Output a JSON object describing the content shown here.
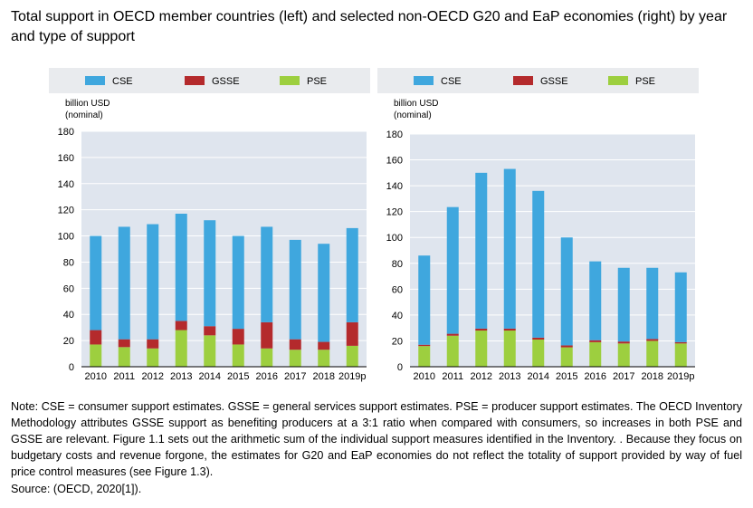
{
  "title": "Total support in OECD member countries (left) and selected non-OECD G20 and EaP economies (right) by year and type of support",
  "note": "Note: CSE = consumer support estimates. GSSE = general services support estimates. PSE = producer support estimates. The OECD Inventory Methodology attributes GSSE support as benefiting producers at a 3:1 ratio when compared with consumers, so increases in both PSE and GSSE are relevant. Figure 1.1 sets out the arithmetic sum of the individual support measures identified in the Inventory. . Because they focus on budgetary costs and revenue forgone, the estimates for G20 and EaP economies do not reflect the totality of support provided by way of fuel price control measures (see Figure 1.3).",
  "source": "Source: (OECD, 2020[1]).",
  "colors": {
    "PSE": "#9dcf3f",
    "GSSE": "#b42a2c",
    "CSE": "#3fa7de",
    "legend_bg": "#e9ebee",
    "plot_bg": "#dfe5ee"
  },
  "chart_data": [
    {
      "type": "bar",
      "stacked": true,
      "ylabel": "billion USD\n(nominal)",
      "ylim": [
        0,
        180
      ],
      "yticks": [
        0,
        20,
        40,
        60,
        80,
        100,
        120,
        140,
        160,
        180
      ],
      "categories": [
        "2010",
        "2011",
        "2012",
        "2013",
        "2014",
        "2015",
        "2016",
        "2017",
        "2018",
        "2019p"
      ],
      "legend": [
        "CSE",
        "GSSE",
        "PSE"
      ],
      "legend_position": "top",
      "series": [
        {
          "name": "PSE",
          "values": [
            17,
            15,
            14,
            28,
            24,
            17,
            14,
            13,
            13,
            16
          ]
        },
        {
          "name": "GSSE",
          "values": [
            11,
            6,
            7,
            7,
            7,
            12,
            20,
            8,
            6,
            18
          ]
        },
        {
          "name": "CSE",
          "values": [
            72,
            86,
            88,
            82,
            81,
            71,
            73,
            76,
            75,
            72
          ]
        }
      ]
    },
    {
      "type": "bar",
      "stacked": true,
      "ylabel": "billion USD\n(nominal)",
      "ylim": [
        0,
        180
      ],
      "yticks": [
        0,
        20,
        40,
        60,
        80,
        100,
        120,
        140,
        160,
        180
      ],
      "categories": [
        "2010",
        "2011",
        "2012",
        "2013",
        "2014",
        "2015",
        "2016",
        "2017",
        "2018",
        "2019p"
      ],
      "legend": [
        "CSE",
        "GSSE",
        "PSE"
      ],
      "legend_position": "top",
      "series": [
        {
          "name": "PSE",
          "values": [
            16,
            24,
            28,
            28,
            21,
            15,
            19,
            18,
            20,
            18
          ]
        },
        {
          "name": "GSSE",
          "values": [
            1,
            1.5,
            1.5,
            1.5,
            1.5,
            1.5,
            1.5,
            1.5,
            1.5,
            1
          ]
        },
        {
          "name": "CSE",
          "values": [
            69,
            98,
            120.5,
            123.5,
            113.5,
            83.5,
            61,
            57,
            55,
            54
          ]
        }
      ]
    }
  ]
}
